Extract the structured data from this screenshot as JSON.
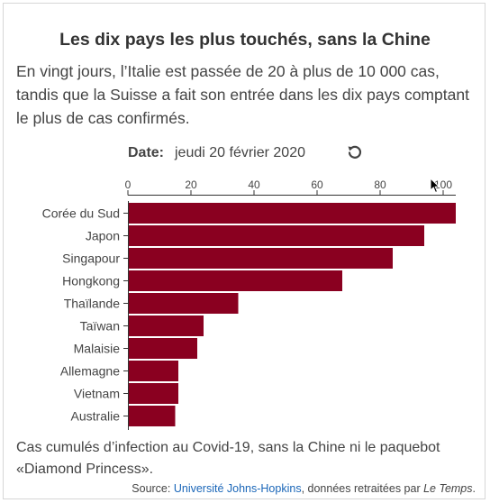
{
  "title": "Les dix pays les plus touchés, sans la Chine",
  "subtitle": "En vingt jours, l’Italie est passée de 20 à plus de 10 000 cas, tandis que la Suisse a fait son entrée dans les dix pays comptant le plus de cas confirmés.",
  "date_control": {
    "label": "Date:",
    "value": "jeudi 20 février 2020",
    "replay_icon": "replay-icon"
  },
  "caption": "Cas cumulés d’infection au Covid-19, sans la Chine ni le paquebot «Diamond Princess».",
  "source": {
    "prefix": "Source: ",
    "link_text": "Université Johns-Hopkins",
    "middle": ", données retraitées par ",
    "publication": "Le Temps",
    "suffix": "."
  },
  "colors": {
    "bar": "#8a0020",
    "axis": "#333333",
    "text": "#444444",
    "link": "#1a66b8"
  },
  "chart_data": {
    "type": "bar",
    "orientation": "horizontal",
    "categories": [
      "Corée du Sud",
      "Japon",
      "Singapour",
      "Hongkong",
      "Thaïlande",
      "Taïwan",
      "Malaisie",
      "Allemagne",
      "Vietnam",
      "Australie"
    ],
    "values": [
      104,
      94,
      84,
      68,
      35,
      24,
      22,
      16,
      16,
      15
    ],
    "xlim": [
      0,
      104
    ],
    "xticks": [
      0,
      20,
      40,
      60,
      80,
      100
    ],
    "xaxis_position": "top",
    "grid": false,
    "legend": "none"
  }
}
